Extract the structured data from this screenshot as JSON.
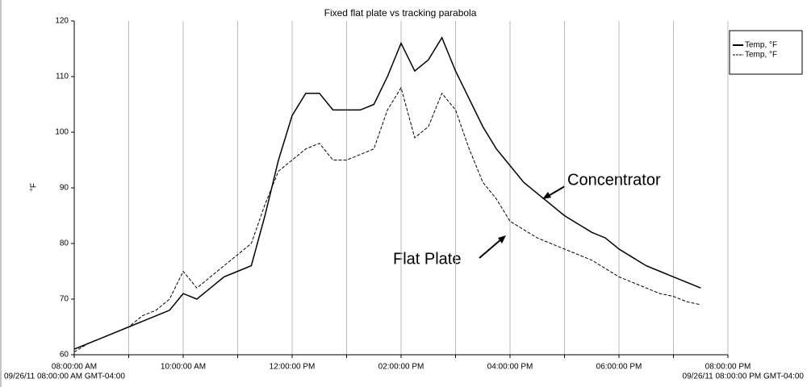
{
  "chart_data": {
    "type": "line",
    "title": "Fixed flat plate vs tracking parabola",
    "y_label": "°F",
    "start_label": "09/26/11 08:00:00 AM GMT-04:00",
    "end_label": "09/26/11 08:00:00 PM GMT-04:00",
    "annotations": [
      "Concentrator",
      "Flat Plate"
    ],
    "x": [
      8.0,
      8.25,
      8.5,
      8.75,
      9.0,
      9.25,
      9.5,
      9.75,
      10.0,
      10.25,
      10.5,
      10.75,
      11.0,
      11.25,
      11.5,
      11.75,
      12.0,
      12.25,
      12.5,
      12.75,
      13.0,
      13.25,
      13.5,
      13.75,
      14.0,
      14.25,
      14.5,
      14.75,
      15.0,
      15.25,
      15.5,
      15.75,
      16.0,
      16.25,
      16.5,
      16.75,
      17.0,
      17.25,
      17.5,
      17.75,
      18.0,
      18.25,
      18.5,
      18.75,
      19.0,
      19.25,
      19.5
    ],
    "series": [
      {
        "name": "Temp, °F",
        "color": "#000000",
        "dashed": false,
        "values": [
          61,
          62,
          63,
          64,
          65,
          66,
          67,
          68,
          71,
          70,
          72,
          74,
          75,
          76,
          85,
          95,
          103,
          107,
          107,
          104,
          104,
          104,
          105,
          110,
          116,
          111,
          113,
          117,
          111,
          106,
          101,
          97,
          94,
          91,
          89,
          87,
          85,
          83.5,
          82,
          81,
          79,
          77.5,
          76,
          75,
          74,
          73,
          72
        ]
      },
      {
        "name": "Temp, °F",
        "color": "#000000",
        "dashed": true,
        "values": [
          60.5,
          62,
          63,
          64,
          65,
          67,
          68,
          70,
          75,
          72,
          74,
          76,
          78,
          80,
          87,
          93,
          95,
          97,
          98,
          95,
          95,
          96,
          97,
          104,
          108,
          99,
          101,
          107,
          104,
          97,
          91,
          88,
          84,
          82.5,
          81,
          80,
          79,
          78,
          77,
          75.5,
          74,
          73,
          72,
          71,
          70.5,
          69.5,
          69
        ]
      }
    ],
    "xlim": [
      8,
      20
    ],
    "xticks": [
      {
        "value": 8,
        "label": "08:00:00 AM"
      },
      {
        "value": 9,
        "label": null
      },
      {
        "value": 10,
        "label": "10:00:00 AM"
      },
      {
        "value": 11,
        "label": null
      },
      {
        "value": 12,
        "label": "12:00:00 PM"
      },
      {
        "value": 13,
        "label": null
      },
      {
        "value": 14,
        "label": "02:00:00 PM"
      },
      {
        "value": 15,
        "label": null
      },
      {
        "value": 16,
        "label": "04:00:00 PM"
      },
      {
        "value": 17,
        "label": null
      },
      {
        "value": 18,
        "label": "06:00:00 PM"
      },
      {
        "value": 19,
        "label": null
      },
      {
        "value": 20,
        "label": "08:00:00 PM"
      }
    ],
    "ylim": [
      60,
      120
    ],
    "yticks": [
      60,
      70,
      80,
      90,
      100,
      110,
      120
    ],
    "grid": true,
    "legend": "top-right"
  }
}
